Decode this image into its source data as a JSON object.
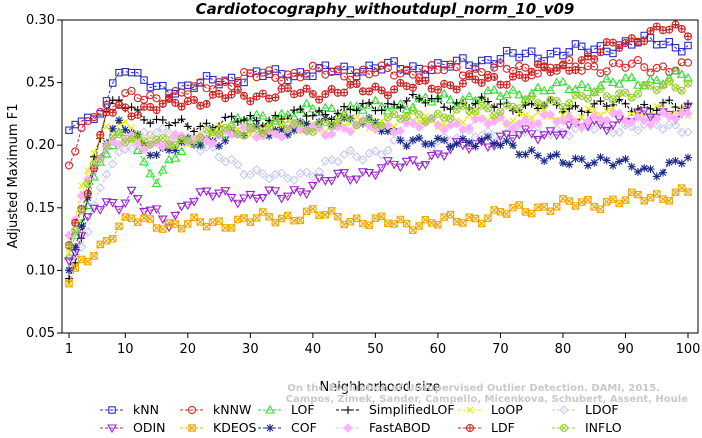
{
  "chart_data": {
    "type": "line",
    "title": "Cardiotocography_withoutdupl_norm_10_v09",
    "xlabel": "Neighborhood size",
    "ylabel": "Adjusted Maximum F1",
    "xlim": [
      1,
      100
    ],
    "ylim": [
      0.05,
      0.3
    ],
    "xticks": [
      "1",
      "10",
      "20",
      "30",
      "40",
      "50",
      "60",
      "70",
      "80",
      "90",
      "100"
    ],
    "yticks": [
      "0.05",
      "0.10",
      "0.15",
      "0.20",
      "0.25",
      "0.30"
    ],
    "grid": false,
    "legend_position": "bottom",
    "credit": [
      "Campos, Zimek, Sander, Campello, Micenkova, Schubert, Assent, Houle",
      "On the Evaluation of Unsupervised Outlier Detection. DAMI, 2015."
    ],
    "series": [
      {
        "name": "kNN",
        "color": "#2a2ad0",
        "marker": "square",
        "anchors": [
          [
            1,
            0.207
          ],
          [
            2,
            0.215
          ],
          [
            3,
            0.22
          ],
          [
            5,
            0.218
          ],
          [
            7,
            0.24
          ],
          [
            9,
            0.258
          ],
          [
            10,
            0.262
          ],
          [
            12,
            0.252
          ],
          [
            15,
            0.246
          ],
          [
            20,
            0.246
          ],
          [
            25,
            0.252
          ],
          [
            30,
            0.255
          ],
          [
            40,
            0.258
          ],
          [
            50,
            0.262
          ],
          [
            60,
            0.262
          ],
          [
            70,
            0.27
          ],
          [
            80,
            0.274
          ],
          [
            90,
            0.28
          ],
          [
            95,
            0.284
          ],
          [
            100,
            0.278
          ]
        ]
      },
      {
        "name": "kNNW",
        "color": "#dd2222",
        "marker": "circle",
        "anchors": [
          [
            1,
            0.184
          ],
          [
            2,
            0.195
          ],
          [
            3,
            0.21
          ],
          [
            5,
            0.228
          ],
          [
            8,
            0.232
          ],
          [
            10,
            0.238
          ],
          [
            15,
            0.238
          ],
          [
            20,
            0.242
          ],
          [
            25,
            0.25
          ],
          [
            30,
            0.255
          ],
          [
            40,
            0.258
          ],
          [
            50,
            0.258
          ],
          [
            60,
            0.26
          ],
          [
            70,
            0.26
          ],
          [
            80,
            0.262
          ],
          [
            90,
            0.263
          ],
          [
            100,
            0.262
          ]
        ]
      },
      {
        "name": "LOF",
        "color": "#33dd33",
        "marker": "triangle-up",
        "anchors": [
          [
            1,
            0.11
          ],
          [
            3,
            0.14
          ],
          [
            5,
            0.175
          ],
          [
            7,
            0.195
          ],
          [
            9,
            0.205
          ],
          [
            11,
            0.208
          ],
          [
            13,
            0.185
          ],
          [
            15,
            0.175
          ],
          [
            18,
            0.19
          ],
          [
            20,
            0.2
          ],
          [
            25,
            0.212
          ],
          [
            30,
            0.22
          ],
          [
            40,
            0.228
          ],
          [
            50,
            0.23
          ],
          [
            60,
            0.236
          ],
          [
            70,
            0.24
          ],
          [
            80,
            0.246
          ],
          [
            90,
            0.25
          ],
          [
            100,
            0.255
          ]
        ]
      },
      {
        "name": "SimplifiedLOF",
        "color": "#000000",
        "marker": "plus",
        "anchors": [
          [
            1,
            0.092
          ],
          [
            3,
            0.13
          ],
          [
            5,
            0.19
          ],
          [
            7,
            0.225
          ],
          [
            9,
            0.235
          ],
          [
            11,
            0.23
          ],
          [
            13,
            0.225
          ],
          [
            15,
            0.218
          ],
          [
            20,
            0.215
          ],
          [
            25,
            0.218
          ],
          [
            30,
            0.22
          ],
          [
            40,
            0.225
          ],
          [
            50,
            0.23
          ],
          [
            55,
            0.236
          ],
          [
            60,
            0.234
          ],
          [
            70,
            0.232
          ],
          [
            80,
            0.23
          ],
          [
            90,
            0.232
          ],
          [
            100,
            0.23
          ]
        ]
      },
      {
        "name": "LoOP",
        "color": "#e8e800",
        "marker": "x",
        "anchors": [
          [
            1,
            0.12
          ],
          [
            3,
            0.165
          ],
          [
            5,
            0.195
          ],
          [
            7,
            0.21
          ],
          [
            9,
            0.22
          ],
          [
            11,
            0.215
          ],
          [
            13,
            0.205
          ],
          [
            15,
            0.2
          ],
          [
            20,
            0.205
          ],
          [
            25,
            0.21
          ],
          [
            30,
            0.212
          ],
          [
            40,
            0.215
          ],
          [
            50,
            0.218
          ],
          [
            60,
            0.22
          ],
          [
            70,
            0.222
          ],
          [
            80,
            0.224
          ],
          [
            90,
            0.226
          ],
          [
            100,
            0.226
          ]
        ]
      },
      {
        "name": "LDOF",
        "color": "#c8c8f0",
        "marker": "diamond",
        "anchors": [
          [
            1,
            0.1
          ],
          [
            4,
            0.13
          ],
          [
            7,
            0.18
          ],
          [
            10,
            0.2
          ],
          [
            15,
            0.21
          ],
          [
            20,
            0.205
          ],
          [
            25,
            0.19
          ],
          [
            30,
            0.18
          ],
          [
            35,
            0.172
          ],
          [
            40,
            0.18
          ],
          [
            45,
            0.19
          ],
          [
            50,
            0.195
          ],
          [
            55,
            0.202
          ],
          [
            60,
            0.204
          ],
          [
            65,
            0.208
          ],
          [
            70,
            0.21
          ],
          [
            80,
            0.212
          ],
          [
            90,
            0.215
          ],
          [
            100,
            0.215
          ]
        ]
      },
      {
        "name": "ODIN",
        "color": "#9922cc",
        "marker": "triangle-down",
        "anchors": [
          [
            1,
            0.106
          ],
          [
            3,
            0.125
          ],
          [
            5,
            0.15
          ],
          [
            7,
            0.155
          ],
          [
            9,
            0.153
          ],
          [
            11,
            0.16
          ],
          [
            13,
            0.148
          ],
          [
            15,
            0.145
          ],
          [
            17,
            0.14
          ],
          [
            20,
            0.155
          ],
          [
            25,
            0.162
          ],
          [
            30,
            0.158
          ],
          [
            35,
            0.16
          ],
          [
            40,
            0.168
          ],
          [
            45,
            0.175
          ],
          [
            50,
            0.18
          ],
          [
            55,
            0.185
          ],
          [
            60,
            0.192
          ],
          [
            65,
            0.2
          ],
          [
            70,
            0.205
          ],
          [
            80,
            0.212
          ],
          [
            90,
            0.22
          ],
          [
            100,
            0.228
          ]
        ]
      },
      {
        "name": "KDEOS",
        "color": "#f0a800",
        "marker": "square-cross",
        "anchors": [
          [
            1,
            0.09
          ],
          [
            3,
            0.105
          ],
          [
            5,
            0.115
          ],
          [
            7,
            0.125
          ],
          [
            9,
            0.135
          ],
          [
            11,
            0.14
          ],
          [
            15,
            0.138
          ],
          [
            20,
            0.136
          ],
          [
            25,
            0.138
          ],
          [
            30,
            0.14
          ],
          [
            40,
            0.145
          ],
          [
            45,
            0.142
          ],
          [
            50,
            0.138
          ],
          [
            60,
            0.138
          ],
          [
            70,
            0.145
          ],
          [
            75,
            0.15
          ],
          [
            80,
            0.152
          ],
          [
            90,
            0.156
          ],
          [
            100,
            0.163
          ]
        ]
      },
      {
        "name": "COF",
        "color": "#1a2a88",
        "marker": "star",
        "anchors": [
          [
            1,
            0.095
          ],
          [
            3,
            0.14
          ],
          [
            5,
            0.18
          ],
          [
            7,
            0.205
          ],
          [
            9,
            0.215
          ],
          [
            11,
            0.21
          ],
          [
            13,
            0.2
          ],
          [
            15,
            0.195
          ],
          [
            20,
            0.2
          ],
          [
            25,
            0.205
          ],
          [
            30,
            0.21
          ],
          [
            40,
            0.215
          ],
          [
            45,
            0.222
          ],
          [
            50,
            0.215
          ],
          [
            55,
            0.205
          ],
          [
            60,
            0.2
          ],
          [
            65,
            0.205
          ],
          [
            70,
            0.2
          ],
          [
            75,
            0.195
          ],
          [
            80,
            0.185
          ],
          [
            85,
            0.19
          ],
          [
            90,
            0.183
          ],
          [
            95,
            0.18
          ],
          [
            100,
            0.188
          ]
        ]
      },
      {
        "name": "FastABOD",
        "color": "#ffb0ff",
        "marker": "diamond-filled",
        "anchors": [
          [
            1,
            0.13
          ],
          [
            3,
            0.16
          ],
          [
            5,
            0.185
          ],
          [
            8,
            0.2
          ],
          [
            11,
            0.205
          ],
          [
            15,
            0.2
          ],
          [
            20,
            0.205
          ],
          [
            30,
            0.21
          ],
          [
            40,
            0.212
          ],
          [
            50,
            0.215
          ],
          [
            60,
            0.216
          ],
          [
            70,
            0.218
          ],
          [
            80,
            0.22
          ],
          [
            90,
            0.221
          ],
          [
            100,
            0.222
          ]
        ]
      },
      {
        "name": "LDF",
        "color": "#cc2222",
        "marker": "circle-plus",
        "anchors": [
          [
            1,
            0.124
          ],
          [
            3,
            0.15
          ],
          [
            5,
            0.18
          ],
          [
            7,
            0.225
          ],
          [
            9,
            0.23
          ],
          [
            11,
            0.228
          ],
          [
            15,
            0.23
          ],
          [
            20,
            0.235
          ],
          [
            25,
            0.238
          ],
          [
            30,
            0.24
          ],
          [
            40,
            0.242
          ],
          [
            50,
            0.245
          ],
          [
            60,
            0.248
          ],
          [
            70,
            0.252
          ],
          [
            75,
            0.258
          ],
          [
            80,
            0.262
          ],
          [
            85,
            0.27
          ],
          [
            88,
            0.28
          ],
          [
            92,
            0.286
          ],
          [
            96,
            0.292
          ],
          [
            100,
            0.292
          ]
        ]
      },
      {
        "name": "INFLO",
        "color": "#99cc33",
        "marker": "circle-cross",
        "anchors": [
          [
            1,
            0.118
          ],
          [
            3,
            0.15
          ],
          [
            5,
            0.18
          ],
          [
            7,
            0.2
          ],
          [
            9,
            0.21
          ],
          [
            12,
            0.205
          ],
          [
            15,
            0.2
          ],
          [
            20,
            0.205
          ],
          [
            25,
            0.21
          ],
          [
            30,
            0.213
          ],
          [
            40,
            0.216
          ],
          [
            50,
            0.22
          ],
          [
            60,
            0.224
          ],
          [
            70,
            0.23
          ],
          [
            80,
            0.236
          ],
          [
            90,
            0.242
          ],
          [
            95,
            0.245
          ],
          [
            100,
            0.25
          ]
        ]
      }
    ]
  }
}
